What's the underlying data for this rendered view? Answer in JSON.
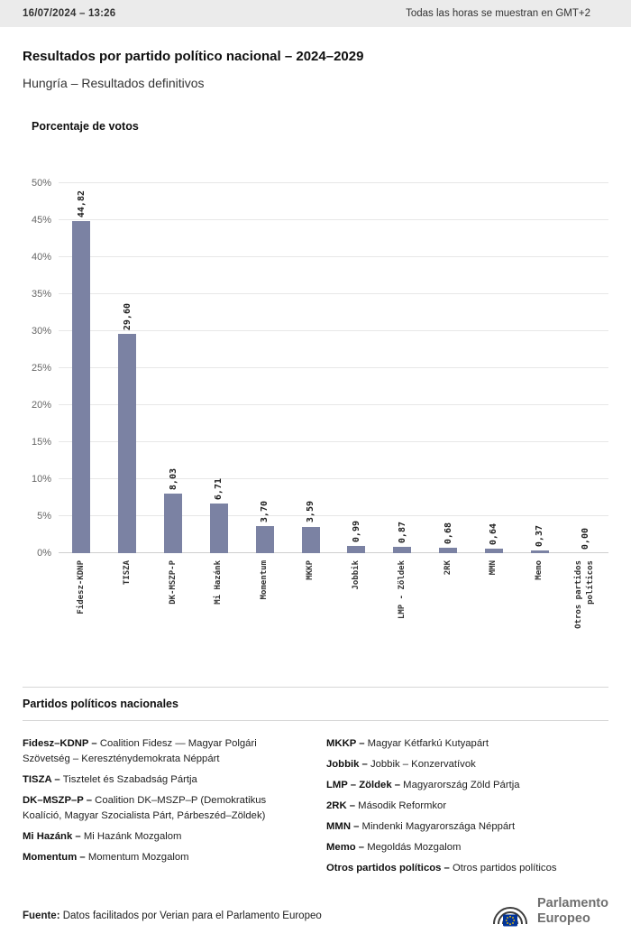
{
  "topbar": {
    "datetime": "16/07/2024 – 13:26",
    "timezone_note": "Todas las horas se muestran en GMT+2"
  },
  "header": {
    "title": "Resultados por partido político nacional – 2024–2029",
    "subtitle": "Hungría – Resultados definitivos"
  },
  "chart_data": {
    "type": "bar",
    "title": "Porcentaje de votos",
    "categories": [
      "Fidesz-KDNP",
      "TISZA",
      "DK-MSZP-P",
      "Mi Hazánk",
      "Momentum",
      "MKKP",
      "Jobbik",
      "LMP - Zöldek",
      "2RK",
      "MMN",
      "Memo",
      "Otros partidos\npolíticos"
    ],
    "values": [
      44.82,
      29.6,
      8.03,
      6.71,
      3.7,
      3.59,
      0.99,
      0.87,
      0.68,
      0.64,
      0.37,
      0.0
    ],
    "value_labels": [
      "44,82",
      "29,60",
      "8,03",
      "6,71",
      "3,70",
      "3,59",
      "0,99",
      "0,87",
      "0,68",
      "0,64",
      "0,37",
      "0,00"
    ],
    "xlabel": "",
    "ylabel": "",
    "ylim": [
      0,
      50
    ],
    "ytick_step": 5,
    "ytick_labels": [
      "0%",
      "5%",
      "10%",
      "15%",
      "20%",
      "25%",
      "30%",
      "35%",
      "40%",
      "45%",
      "50%"
    ],
    "grid": true,
    "legend_position": "none",
    "bar_color": "#7b82a3"
  },
  "legend": {
    "heading": "Partidos políticos nacionales",
    "columns": [
      [
        {
          "abbr": "Fidesz–KDNP –",
          "desc": "Coalition Fidesz — Magyar Polgári Szövetség – Kereszténydemokrata Néppárt"
        },
        {
          "abbr": "TISZA –",
          "desc": "Tisztelet és Szabadság Pártja"
        },
        {
          "abbr": "DK–MSZP–P –",
          "desc": "Coalition DK–MSZP–P (Demokratikus Koalíció, Magyar Szocialista Párt, Párbeszéd–Zöldek)"
        },
        {
          "abbr": "Mi Hazánk –",
          "desc": "Mi Hazánk Mozgalom"
        },
        {
          "abbr": "Momentum –",
          "desc": "Momentum Mozgalom"
        }
      ],
      [
        {
          "abbr": "MKKP –",
          "desc": "Magyar Kétfarkú Kutyapárt"
        },
        {
          "abbr": "Jobbik –",
          "desc": "Jobbik – Konzervatívok"
        },
        {
          "abbr": "LMP – Zöldek –",
          "desc": "Magyarország Zöld Pártja"
        },
        {
          "abbr": "2RK –",
          "desc": "Második Reformkor"
        },
        {
          "abbr": "MMN –",
          "desc": "Mindenki Magyarországa Néppárt"
        },
        {
          "abbr": "Memo –",
          "desc": "Megoldás Mozgalom"
        },
        {
          "abbr": "Otros partidos políticos –",
          "desc": "Otros partidos políticos"
        }
      ]
    ]
  },
  "footer": {
    "source_label": "Fuente:",
    "source_text": "Datos facilitados por Verian para el Parlamento Europeo",
    "logo_line1": "Parlamento",
    "logo_line2": "Europeo",
    "brand_colors": {
      "flag_blue": "#003399",
      "star_yellow": "#FFCC00",
      "arc_gray": "#3d3d3d"
    }
  }
}
